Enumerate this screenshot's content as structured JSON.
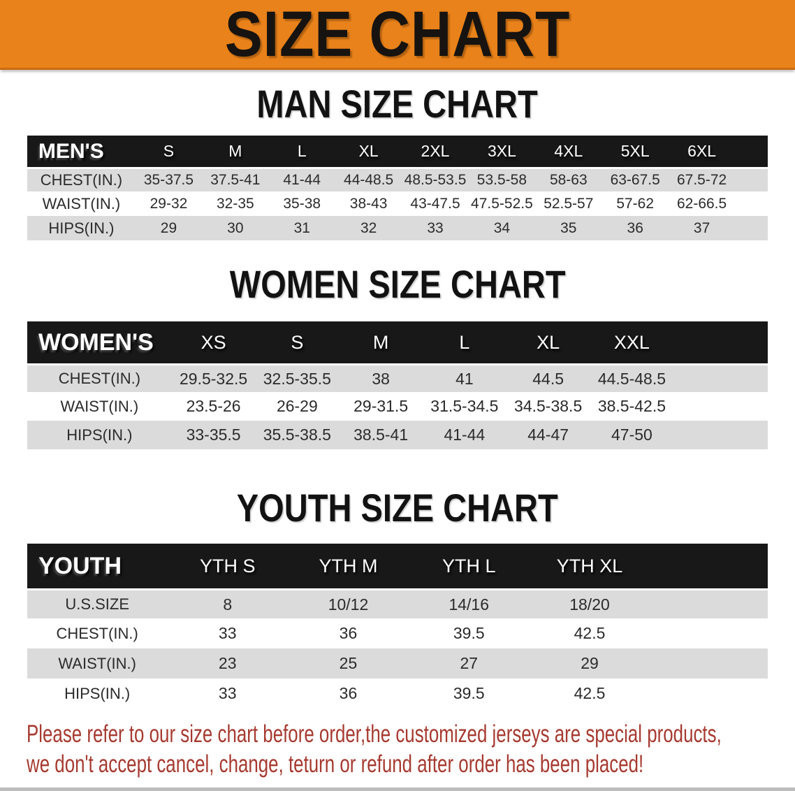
{
  "banner": {
    "title": "SIZE CHART",
    "background_color": "#E9821A",
    "text_color": "#171310"
  },
  "sections": [
    {
      "id": "men",
      "heading": "MAN SIZE CHART",
      "table": {
        "corner_label": "MEN'S",
        "columns": [
          "S",
          "M",
          "L",
          "XL",
          "2XL",
          "3XL",
          "4XL",
          "5XL",
          "6XL"
        ],
        "rows": [
          {
            "label": "CHEST(IN.)",
            "values": [
              "35-37.5",
              "37.5-41",
              "41-44",
              "44-48.5",
              "48.5-53.5",
              "53.5-58",
              "58-63",
              "63-67.5",
              "67.5-72"
            ]
          },
          {
            "label": "WAIST(IN.)",
            "values": [
              "29-32",
              "32-35",
              "35-38",
              "38-43",
              "43-47.5",
              "47.5-52.5",
              "52.5-57",
              "57-62",
              "62-66.5"
            ]
          },
          {
            "label": "HIPS(IN.)",
            "values": [
              "29",
              "30",
              "31",
              "32",
              "33",
              "34",
              "35",
              "36",
              "37"
            ]
          }
        ]
      }
    },
    {
      "id": "women",
      "heading": "WOMEN SIZE CHART",
      "table": {
        "corner_label": "WOMEN'S",
        "columns": [
          "XS",
          "S",
          "M",
          "L",
          "XL",
          "XXL"
        ],
        "rows": [
          {
            "label": "CHEST(IN.)",
            "values": [
              "29.5-32.5",
              "32.5-35.5",
              "38",
              "41",
              "44.5",
              "44.5-48.5"
            ]
          },
          {
            "label": "WAIST(IN.)",
            "values": [
              "23.5-26",
              "26-29",
              "29-31.5",
              "31.5-34.5",
              "34.5-38.5",
              "38.5-42.5"
            ]
          },
          {
            "label": "HIPS(IN.)",
            "values": [
              "33-35.5",
              "35.5-38.5",
              "38.5-41",
              "41-44",
              "44-47",
              "47-50"
            ]
          }
        ]
      }
    },
    {
      "id": "youth",
      "heading": "YOUTH SIZE CHART",
      "table": {
        "corner_label": "YOUTH",
        "columns": [
          "YTH S",
          "YTH M",
          "YTH L",
          "YTH XL"
        ],
        "rows": [
          {
            "label": "U.S.SIZE",
            "values": [
              "8",
              "10/12",
              "14/16",
              "18/20"
            ]
          },
          {
            "label": "CHEST(IN.)",
            "values": [
              "33",
              "36",
              "39.5",
              "42.5"
            ]
          },
          {
            "label": "WAIST(IN.)",
            "values": [
              "23",
              "25",
              "27",
              "29"
            ]
          },
          {
            "label": "HIPS(IN.)",
            "values": [
              "33",
              "36",
              "39.5",
              "42.5"
            ]
          }
        ]
      }
    }
  ],
  "notice": {
    "lines": [
      "Please refer to our size chart before order,the customized jerseys are special products,",
      "we don't accept cancel, change, teturn or refund after order has been placed!"
    ],
    "text_color": "#A63A30"
  }
}
